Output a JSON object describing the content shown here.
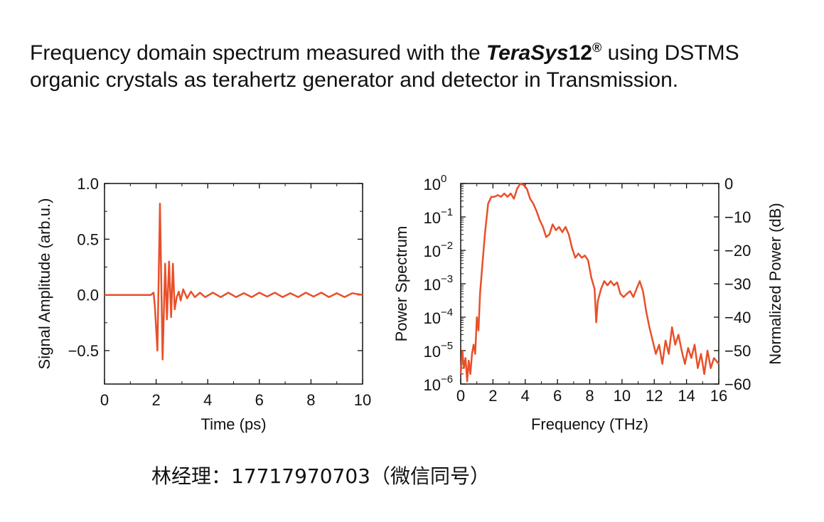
{
  "heading": {
    "part1": "Frequency domain spectrum measured with the ",
    "brand_italic": "TeraSys",
    "brand_number": "12",
    "registered": "®",
    "part2": " using DSTMS organic crystals as terahertz generator and detector in Transmission."
  },
  "footer": {
    "contact": "林经理：17717970703（微信同号）"
  },
  "colors": {
    "trace": "#e8502a",
    "axis": "#111111"
  },
  "chart_data": [
    {
      "type": "line",
      "title": "",
      "xlabel": "Time (ps)",
      "ylabel": "Signal Amplitude (arb.u.)",
      "xlim": [
        0,
        10
      ],
      "ylim": [
        -0.8,
        1.0
      ],
      "xticks": [
        0,
        2,
        4,
        6,
        8,
        10
      ],
      "yticks": [
        -0.5,
        0.0,
        0.5,
        1.0
      ],
      "xtick_labels": [
        "0",
        "2",
        "4",
        "6",
        "8",
        "10"
      ],
      "ytick_labels": [
        "−0.5",
        "0.0",
        "0.5",
        "1.0"
      ],
      "grid": false,
      "series": [
        {
          "x": [
            0,
            1.5,
            1.8,
            1.9,
            1.95,
            2.05,
            2.15,
            2.25,
            2.35,
            2.42,
            2.5,
            2.58,
            2.65,
            2.72,
            2.8,
            2.88,
            2.95,
            3.05,
            3.2,
            3.35,
            3.5,
            3.7,
            3.9,
            4.2,
            4.5,
            4.8,
            5.1,
            5.4,
            5.7,
            6.0,
            6.3,
            6.6,
            6.9,
            7.2,
            7.5,
            7.8,
            8.1,
            8.4,
            8.7,
            9.0,
            9.3,
            9.6,
            10.0
          ],
          "y": [
            0.0,
            0.0,
            0.0,
            0.02,
            -0.1,
            -0.5,
            0.82,
            -0.58,
            0.28,
            -0.22,
            0.3,
            -0.2,
            0.28,
            -0.13,
            -0.02,
            0.03,
            -0.05,
            0.05,
            -0.03,
            0.03,
            -0.02,
            0.02,
            -0.02,
            0.02,
            -0.02,
            0.02,
            -0.02,
            0.015,
            -0.02,
            0.02,
            -0.015,
            0.02,
            -0.02,
            0.015,
            -0.02,
            0.02,
            -0.015,
            0.02,
            -0.02,
            0.015,
            -0.02,
            0.015,
            0.0
          ]
        }
      ]
    },
    {
      "type": "line",
      "title": "",
      "xlabel": "Frequency (THz)",
      "ylabel": "Power Spectrum",
      "ylabel_right": "Normalized Power (dB)",
      "xlim": [
        0,
        16
      ],
      "ylim": [
        1e-06,
        1
      ],
      "yscale": "log",
      "xticks": [
        0,
        2,
        4,
        6,
        8,
        10,
        12,
        14,
        16
      ],
      "xtick_labels": [
        "0",
        "2",
        "4",
        "6",
        "8",
        "10",
        "12",
        "14",
        "16"
      ],
      "yticks": [
        1e-06,
        1e-05,
        0.0001,
        0.001,
        0.01,
        0.1,
        1
      ],
      "ytick_mantissa": [
        "10",
        "10",
        "10",
        "10",
        "10",
        "10",
        "10"
      ],
      "ytick_exponents": [
        "−6",
        "−5",
        "−4",
        "−3",
        "−2",
        "−1",
        "0"
      ],
      "yticks_right_labels": [
        "−60",
        "−50",
        "−40",
        "−30",
        "−20",
        "−10",
        "0"
      ],
      "grid": false,
      "series": [
        {
          "x": [
            0.0,
            0.1,
            0.2,
            0.3,
            0.4,
            0.5,
            0.6,
            0.7,
            0.8,
            0.9,
            1.0,
            1.1,
            1.2,
            1.35,
            1.5,
            1.7,
            1.9,
            2.1,
            2.3,
            2.5,
            2.7,
            2.9,
            3.1,
            3.3,
            3.5,
            3.7,
            3.9,
            4.1,
            4.3,
            4.5,
            4.7,
            4.9,
            5.1,
            5.3,
            5.5,
            5.7,
            5.9,
            6.1,
            6.3,
            6.5,
            6.7,
            6.9,
            7.1,
            7.3,
            7.5,
            7.7,
            7.9,
            8.1,
            8.3,
            8.4,
            8.5,
            8.7,
            8.9,
            9.1,
            9.3,
            9.5,
            9.7,
            9.9,
            10.1,
            10.3,
            10.5,
            10.7,
            10.9,
            11.1,
            11.3,
            11.5,
            11.7,
            11.9,
            12.1,
            12.3,
            12.5,
            12.7,
            12.9,
            13.1,
            13.3,
            13.5,
            13.7,
            13.9,
            14.1,
            14.3,
            14.5,
            14.7,
            14.9,
            15.1,
            15.3,
            15.5,
            15.7,
            16.0
          ],
          "y": [
            2e-06,
            1e-05,
            3e-06,
            6e-06,
            1.2e-06,
            5e-06,
            2e-06,
            8e-06,
            1.5e-05,
            8e-06,
            0.0001,
            4e-05,
            0.0005,
            0.004,
            0.03,
            0.25,
            0.4,
            0.4,
            0.45,
            0.4,
            0.5,
            0.4,
            0.5,
            0.35,
            0.7,
            1.0,
            0.9,
            0.7,
            0.35,
            0.25,
            0.15,
            0.08,
            0.05,
            0.025,
            0.03,
            0.06,
            0.04,
            0.05,
            0.035,
            0.05,
            0.03,
            0.012,
            0.006,
            0.008,
            0.006,
            0.007,
            0.005,
            0.0015,
            0.0007,
            7e-05,
            0.0003,
            0.0007,
            0.0012,
            0.0009,
            0.0012,
            0.0009,
            0.0011,
            0.0005,
            0.0004,
            0.0005,
            0.0006,
            0.0004,
            0.0007,
            0.0012,
            0.0006,
            0.00015,
            5e-05,
            2e-05,
            8e-06,
            1.5e-05,
            4e-06,
            2e-05,
            8e-06,
            5e-05,
            1.5e-05,
            3e-05,
            1e-05,
            4e-06,
            1.2e-05,
            6e-06,
            1.5e-05,
            3e-06,
            8e-06,
            2e-06,
            1e-05,
            3e-06,
            6e-06,
            4e-06
          ]
        }
      ]
    }
  ]
}
